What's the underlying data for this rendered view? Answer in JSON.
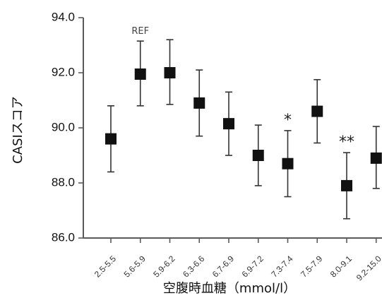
{
  "chart_data": {
    "type": "scatter",
    "xlabel": "空腹時血糖（mmol/l）",
    "ylabel": "CASIスコア",
    "ylim": [
      86.0,
      94.0
    ],
    "yticks": [
      "86.0",
      "88.0",
      "90.0",
      "92.0",
      "94.0"
    ],
    "categories": [
      "2.5-5.5",
      "5.6-5.9",
      "5.9-6.2",
      "6.3-6.6",
      "6.7-6.9",
      "6.9-7.2",
      "7.3-7.4",
      "7.5-7.9",
      "8.0-9.1",
      "9.2-15.0"
    ],
    "values": [
      89.6,
      91.95,
      92.0,
      90.9,
      90.15,
      89.0,
      88.7,
      90.6,
      87.9,
      88.9
    ],
    "error_low": [
      88.4,
      90.8,
      90.85,
      89.7,
      89.0,
      87.9,
      87.5,
      89.45,
      86.7,
      87.8
    ],
    "error_high": [
      90.8,
      93.15,
      93.2,
      92.1,
      91.3,
      90.1,
      89.9,
      91.75,
      89.1,
      90.05
    ],
    "annotations": [
      {
        "category": "5.6-5.9",
        "text": "REF"
      },
      {
        "category": "7.3-7.4",
        "text": "*"
      },
      {
        "category": "8.0-9.1",
        "text": "**"
      }
    ],
    "grid": false
  }
}
